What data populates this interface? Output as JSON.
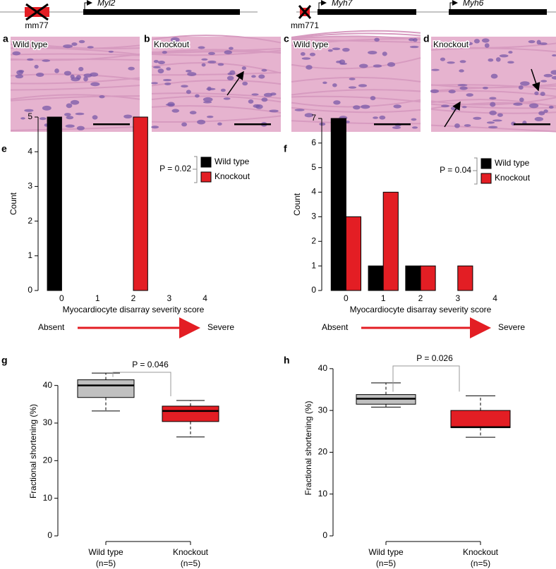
{
  "gene_diagrams": [
    {
      "deletion": "mm77",
      "genes": [
        "Myl2"
      ]
    },
    {
      "deletion": "mm771",
      "genes": [
        "Myh7",
        "Myh6"
      ]
    }
  ],
  "histology": [
    {
      "panel": "a",
      "label": "Wild type"
    },
    {
      "panel": "b",
      "label": "Knockout"
    },
    {
      "panel": "c",
      "label": "Wild type"
    },
    {
      "panel": "d",
      "label": "Knockout"
    }
  ],
  "chart_data": [
    {
      "panel": "e",
      "type": "bar",
      "ylabel": "Count",
      "xlabel": "Myocardiocyte disarray severity score",
      "categories": [
        "0",
        "1",
        "2",
        "3",
        "4"
      ],
      "series": [
        {
          "name": "Wild type",
          "color": "#000000",
          "values": [
            5,
            0,
            0,
            0,
            0
          ]
        },
        {
          "name": "Knockout",
          "color": "#e31e24",
          "values": [
            0,
            0,
            5,
            0,
            0
          ]
        }
      ],
      "ylim": [
        0,
        5
      ],
      "yticks": [
        0,
        1,
        2,
        3,
        4,
        5
      ],
      "annotation": "P = 0.02",
      "scale": {
        "start": "Absent",
        "end": "Severe"
      }
    },
    {
      "panel": "f",
      "type": "bar",
      "ylabel": "Count",
      "xlabel": "Myocardiocyte disarray severity score",
      "categories": [
        "0",
        "1",
        "2",
        "3",
        "4"
      ],
      "series": [
        {
          "name": "Wild type",
          "color": "#000000",
          "values": [
            7,
            1,
            1,
            0,
            0
          ]
        },
        {
          "name": "Knockout",
          "color": "#e31e24",
          "values": [
            3,
            4,
            1,
            1,
            0
          ]
        }
      ],
      "ylim": [
        0,
        7
      ],
      "yticks": [
        0,
        1,
        2,
        3,
        4,
        5,
        6,
        7
      ],
      "annotation": "P = 0.04",
      "scale": {
        "start": "Absent",
        "end": "Severe"
      }
    },
    {
      "panel": "g",
      "type": "box",
      "ylabel": "Fractional shortening (%)",
      "categories": [
        "Wild type",
        "Knockout"
      ],
      "sample_sizes": [
        "(n=5)",
        "(n=5)"
      ],
      "boxes": [
        {
          "color": "#c0c0c0",
          "min": 33.2,
          "q1": 36.8,
          "median": 40,
          "q3": 41.5,
          "max": 43.3
        },
        {
          "color": "#e31e24",
          "min": 26.3,
          "q1": 30.4,
          "median": 33.2,
          "q3": 34.5,
          "max": 36.0
        }
      ],
      "ylim": [
        0,
        45
      ],
      "yticks": [
        0,
        10,
        20,
        30,
        40
      ],
      "annotation": "P = 0.046"
    },
    {
      "panel": "h",
      "type": "box",
      "ylabel": "Fractional shortening (%)",
      "categories": [
        "Wild type",
        "Knockout"
      ],
      "sample_sizes": [
        "(n=5)",
        "(n=5)"
      ],
      "boxes": [
        {
          "color": "#c0c0c0",
          "min": 30.8,
          "q1": 31.5,
          "median": 32.8,
          "q3": 33.8,
          "max": 36.6
        },
        {
          "color": "#e31e24",
          "min": 23.6,
          "q1": 25.9,
          "median": 26.0,
          "q3": 30.0,
          "max": 33.5
        }
      ],
      "ylim": [
        0,
        42
      ],
      "yticks": [
        0,
        10,
        20,
        30,
        40
      ],
      "annotation": "P = 0.026"
    }
  ]
}
